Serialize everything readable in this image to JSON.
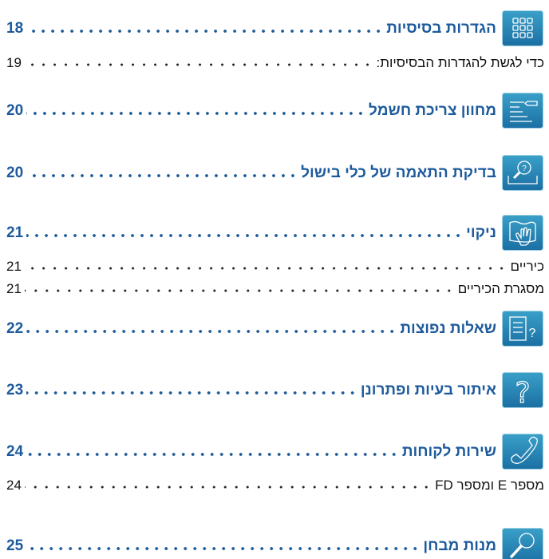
{
  "entries": [
    {
      "kind": "section",
      "title": "הגדרות בסיסיות",
      "page": 18
    },
    {
      "kind": "sub",
      "title": "כדי לגשת להגדרות הבסיסיות:",
      "page": 19
    },
    {
      "kind": "section",
      "title": "מחוון צריכת חשמל",
      "page": 20
    },
    {
      "kind": "section",
      "title": "בדיקת התאמה של כלי בישול",
      "page": 20
    },
    {
      "kind": "section",
      "title": "ניקוי",
      "page": 21
    },
    {
      "kind": "sub",
      "title": "כיריים",
      "page": 21
    },
    {
      "kind": "sub",
      "title": "מסגרת הכיריים",
      "page": 21
    },
    {
      "kind": "section",
      "title": "שאלות נפוצות",
      "page": 22
    },
    {
      "kind": "section",
      "title": "איתור בעיות ופתרונן",
      "page": 23
    },
    {
      "kind": "section",
      "title": "שירות לקוחות",
      "page": 24
    },
    {
      "kind": "sub",
      "title": "מספר E ומספר FD",
      "page": 24
    },
    {
      "kind": "section",
      "title": "מנות מבחן",
      "page": 25
    }
  ]
}
